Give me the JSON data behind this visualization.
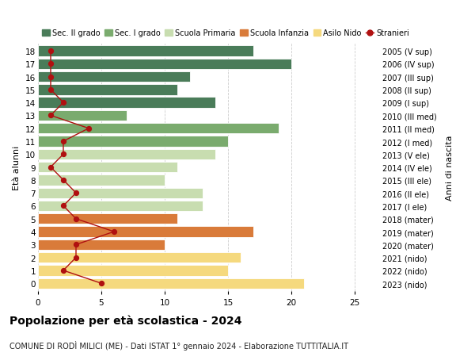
{
  "ages": [
    18,
    17,
    16,
    15,
    14,
    13,
    12,
    11,
    10,
    9,
    8,
    7,
    6,
    5,
    4,
    3,
    2,
    1,
    0
  ],
  "years_labels": [
    "2005 (V sup)",
    "2006 (IV sup)",
    "2007 (III sup)",
    "2008 (II sup)",
    "2009 (I sup)",
    "2010 (III med)",
    "2011 (II med)",
    "2012 (I med)",
    "2013 (V ele)",
    "2014 (IV ele)",
    "2015 (III ele)",
    "2016 (II ele)",
    "2017 (I ele)",
    "2018 (mater)",
    "2019 (mater)",
    "2020 (mater)",
    "2021 (nido)",
    "2022 (nido)",
    "2023 (nido)"
  ],
  "bar_values": [
    17,
    20,
    12,
    11,
    14,
    7,
    19,
    15,
    14,
    11,
    10,
    13,
    13,
    11,
    17,
    10,
    16,
    15,
    21
  ],
  "bar_colors": [
    "#4a7c59",
    "#4a7c59",
    "#4a7c59",
    "#4a7c59",
    "#4a7c59",
    "#7aab6e",
    "#7aab6e",
    "#7aab6e",
    "#c8ddb0",
    "#c8ddb0",
    "#c8ddb0",
    "#c8ddb0",
    "#c8ddb0",
    "#d97b3a",
    "#d97b3a",
    "#d97b3a",
    "#f5d97e",
    "#f5d97e",
    "#f5d97e"
  ],
  "stranieri_values": [
    1,
    1,
    1,
    1,
    2,
    1,
    4,
    2,
    2,
    1,
    2,
    3,
    2,
    3,
    6,
    3,
    3,
    2,
    5
  ],
  "legend_labels": [
    "Sec. II grado",
    "Sec. I grado",
    "Scuola Primaria",
    "Scuola Infanzia",
    "Asilo Nido",
    "Stranieri"
  ],
  "legend_colors": [
    "#4a7c59",
    "#7aab6e",
    "#c8ddb0",
    "#d97b3a",
    "#f5d97e",
    "#b01010"
  ],
  "title": "Popolazione per età scolastica - 2024",
  "subtitle": "COMUNE DI RODÌ MILICI (ME) - Dati ISTAT 1° gennaio 2024 - Elaborazione TUTTITALIA.IT",
  "ylabel_left": "Età alunni",
  "ylabel_right": "Anni di nascita",
  "xlim": [
    0,
    27
  ],
  "xticks": [
    0,
    5,
    10,
    15,
    20,
    25
  ],
  "stranieri_color": "#b01010",
  "grid_color": "#cccccc"
}
